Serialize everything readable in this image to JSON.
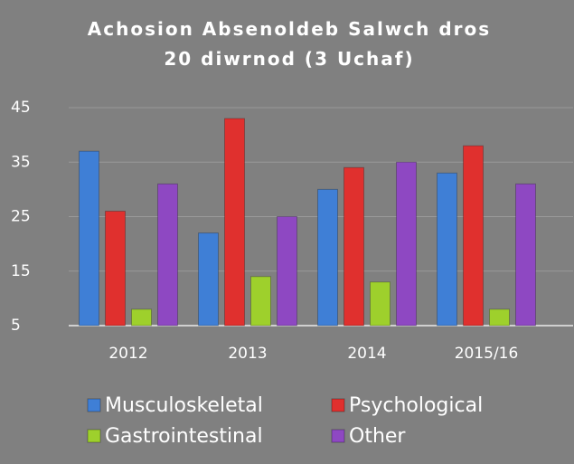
{
  "chart_data": {
    "type": "bar",
    "title": "Achosion Absenoldeb Salwch dros 20 diwrnod (3 Uchaf)",
    "categories": [
      "2012",
      "2013",
      "2014",
      "2015/16"
    ],
    "series": [
      {
        "name": "Musculoskeletal",
        "color": "#3f7fd6",
        "values": [
          37,
          22,
          30,
          33
        ]
      },
      {
        "name": "Psychological",
        "color": "#e0302e",
        "values": [
          26,
          43,
          34,
          38
        ]
      },
      {
        "name": "Gastrointestinal",
        "color": "#9ed02c",
        "values": [
          8,
          14,
          13,
          8
        ]
      },
      {
        "name": "Other",
        "color": "#8e48c2",
        "values": [
          31,
          25,
          35,
          31
        ]
      }
    ],
    "ylim": [
      5,
      45
    ],
    "yticks": [
      5,
      15,
      25,
      35,
      45
    ],
    "grid": true,
    "legend": "bottom"
  }
}
